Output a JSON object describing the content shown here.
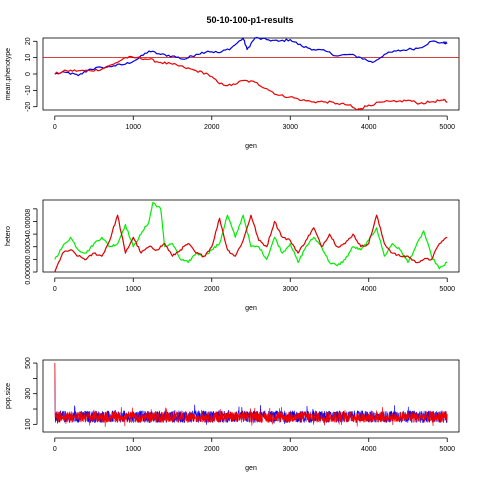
{
  "figure": {
    "title": "50-10-100-p1-results"
  },
  "chart_data": [
    {
      "type": "line",
      "panel": "top",
      "xlabel": "gen",
      "ylabel": "mean.phenotype",
      "xlim": [
        -150,
        5150
      ],
      "ylim": [
        -22,
        22
      ],
      "xticks": [
        0,
        1000,
        2000,
        3000,
        4000,
        5000
      ],
      "yticks": [
        -20,
        -10,
        0,
        10,
        20
      ],
      "ytick_labels": [
        "-20",
        "-10",
        "0",
        "10",
        "20"
      ],
      "hline": {
        "y": 10,
        "color": "#cc0000"
      },
      "series": [
        {
          "color": "#0000dd",
          "x": [
            0,
            150,
            300,
            450,
            600,
            750,
            900,
            1050,
            1200,
            1350,
            1500,
            1650,
            1800,
            1950,
            2100,
            2250,
            2400,
            2450,
            2550,
            2700,
            2850,
            3000,
            3150,
            3300,
            3450,
            3600,
            3750,
            3900,
            4050,
            4200,
            4350,
            4500,
            4650,
            4800,
            4950,
            5000
          ],
          "y": [
            0,
            1,
            -1,
            3,
            4,
            5,
            6,
            9,
            14,
            12,
            11,
            9,
            12,
            14,
            13,
            16,
            22,
            15,
            22,
            21,
            20,
            21,
            17,
            15,
            14,
            11,
            12,
            10,
            7,
            12,
            14,
            15,
            16,
            20,
            19,
            19
          ]
        },
        {
          "color": "#ee0000",
          "x": [
            0,
            150,
            300,
            450,
            600,
            750,
            900,
            1050,
            1200,
            1350,
            1500,
            1650,
            1800,
            1950,
            2100,
            2250,
            2400,
            2550,
            2700,
            2850,
            3000,
            3150,
            3300,
            3450,
            3600,
            3750,
            3850,
            3900,
            4000,
            4200,
            4350,
            4500,
            4650,
            4800,
            4950,
            5000
          ],
          "y": [
            0,
            2,
            2,
            2,
            3,
            6,
            10,
            10,
            9,
            7,
            6,
            4,
            2,
            0,
            -6,
            -7,
            -4,
            -5,
            -9,
            -13,
            -14,
            -16,
            -17,
            -17,
            -18,
            -19,
            -22,
            -21,
            -19,
            -17,
            -17,
            -16,
            -18,
            -17,
            -16,
            -17
          ]
        }
      ]
    },
    {
      "type": "line",
      "panel": "middle",
      "xlabel": "gen",
      "ylabel": "hetero",
      "xlim": [
        -150,
        5150
      ],
      "ylim": [
        0,
        0.000114
      ],
      "xticks": [
        0,
        1000,
        2000,
        3000,
        4000,
        5000
      ],
      "yticks": [
        0,
        2e-05,
        4e-05,
        6e-05,
        8e-05,
        0.0001
      ],
      "ytick_labels": [
        "0.00000",
        "",
        "0.00004",
        "",
        "0.00008",
        ""
      ],
      "series": [
        {
          "color": "#00ee00",
          "x": [
            0,
            100,
            200,
            300,
            400,
            500,
            600,
            700,
            800,
            900,
            1000,
            1100,
            1200,
            1250,
            1350,
            1400,
            1500,
            1600,
            1700,
            1800,
            1900,
            2000,
            2100,
            2200,
            2300,
            2400,
            2500,
            2600,
            2700,
            2800,
            2900,
            3000,
            3100,
            3200,
            3300,
            3400,
            3500,
            3600,
            3700,
            3800,
            3900,
            4000,
            4100,
            4200,
            4300,
            4400,
            4500,
            4600,
            4700,
            4800,
            4900,
            5000
          ],
          "y": [
            2e-05,
            4e-05,
            5.5e-05,
            3.5e-05,
            3e-05,
            4.5e-05,
            5.5e-05,
            4e-05,
            4.5e-05,
            7.5e-05,
            4e-05,
            6e-05,
            8e-05,
            0.00011,
            0.0001,
            4e-05,
            4.5e-05,
            2e-05,
            1.5e-05,
            3e-05,
            2.5e-05,
            3.5e-05,
            4.5e-05,
            9e-05,
            5.5e-05,
            9e-05,
            4e-05,
            4e-05,
            2e-05,
            5.5e-05,
            3e-05,
            4.5e-05,
            1.5e-05,
            4e-05,
            5.5e-05,
            4e-05,
            1.5e-05,
            1e-05,
            2e-05,
            4e-05,
            3.5e-05,
            5e-05,
            7e-05,
            2.5e-05,
            4.5e-05,
            3.5e-05,
            1.5e-05,
            4e-05,
            6.5e-05,
            2.5e-05,
            5e-06,
            1.5e-05
          ]
        },
        {
          "color": "#dd0000",
          "x": [
            0,
            100,
            200,
            300,
            400,
            500,
            600,
            700,
            800,
            900,
            1000,
            1100,
            1200,
            1300,
            1400,
            1500,
            1600,
            1700,
            1800,
            1900,
            2000,
            2100,
            2200,
            2300,
            2400,
            2500,
            2600,
            2700,
            2800,
            2900,
            3000,
            3100,
            3200,
            3300,
            3400,
            3500,
            3600,
            3700,
            3800,
            3900,
            4000,
            4100,
            4200,
            4300,
            4400,
            4500,
            4600,
            4700,
            4800,
            4900,
            5000
          ],
          "y": [
            0.0,
            3e-05,
            3.5e-05,
            2.5e-05,
            2e-05,
            3e-05,
            2.5e-05,
            5e-05,
            9e-05,
            3e-05,
            5.5e-05,
            3e-05,
            4e-05,
            3.5e-05,
            4.5e-05,
            2.5e-05,
            3.5e-05,
            4.5e-05,
            3e-05,
            2.5e-05,
            4e-05,
            8.5e-05,
            3.5e-05,
            2.5e-05,
            5e-05,
            9e-05,
            5e-05,
            4e-05,
            8e-05,
            5.5e-05,
            5e-05,
            3e-05,
            5e-05,
            7e-05,
            4e-05,
            6e-05,
            4e-05,
            4.5e-05,
            6e-05,
            4e-05,
            4.5e-05,
            9e-05,
            4.5e-05,
            3e-05,
            2.5e-05,
            2.5e-05,
            1.5e-05,
            2e-05,
            2e-05,
            4.5e-05,
            5.5e-05
          ]
        }
      ]
    },
    {
      "type": "line",
      "panel": "bottom",
      "xlabel": "gen",
      "ylabel": "pop.size",
      "xlim": [
        -150,
        5150
      ],
      "ylim": [
        50,
        520
      ],
      "xticks": [
        0,
        1000,
        2000,
        3000,
        4000,
        5000
      ],
      "yticks": [
        100,
        200,
        300,
        400,
        500
      ],
      "ytick_labels": [
        "100",
        "",
        "300",
        "",
        "500"
      ],
      "series": [
        {
          "color": "#0000ff",
          "initial": 500,
          "mean": 150,
          "range": [
            90,
            230
          ]
        },
        {
          "color": "#ee0000",
          "initial": 500,
          "mean": 148,
          "range": [
            85,
            215
          ]
        }
      ]
    }
  ]
}
